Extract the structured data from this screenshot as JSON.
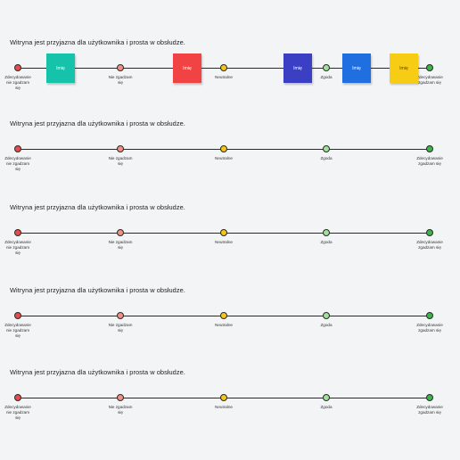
{
  "scale_labels": [
    "Zdecydowanie\nnie zgadzam\nsię",
    "Nie zgadzam\nsię",
    "Neutralne",
    "Zgoda",
    "Zdecydowanie\nzgadzam się"
  ],
  "scale_colors": [
    "#e84b4b",
    "#f28f85",
    "#f5c518",
    "#9fe09a",
    "#3bb54a"
  ],
  "rows": [
    {
      "question": "Witryna jest przyjazna dla użytkownika i prosta w obsłudze."
    },
    {
      "question": "Witryna jest przyjazna dla użytkownika i prosta w obsłudze."
    },
    {
      "question": "Witryna jest przyjazna dla użytkownika i prosta w obsłudze."
    },
    {
      "question": "Witryna jest przyjazna dla użytkownika i prosta w obsłudze."
    },
    {
      "question": "Witryna jest przyjazna dla użytkownika i prosta w obsłudze."
    }
  ],
  "sticky_notes": [
    {
      "label": "Imię",
      "color": "#14c3a9"
    },
    {
      "label": "Imię",
      "color": "#f14343"
    },
    {
      "label": "Imię",
      "color": "#3a3fc4"
    },
    {
      "label": "Imię",
      "color": "#1f6fe0"
    },
    {
      "label": "Imię",
      "color": "#f7cc15",
      "text_color": "#5a4a00"
    }
  ]
}
